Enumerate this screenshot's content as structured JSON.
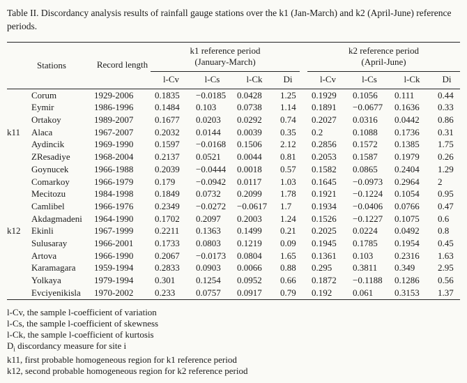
{
  "caption": "Table II. Discordancy analysis results of rainfall gauge stations over the k1 (Jan-March) and k2 (April-June) reference periods.",
  "table": {
    "group_headers": {
      "k1": [
        "k1 reference period",
        "(January-March)"
      ],
      "k2": [
        "k2 reference period",
        "(April-June)"
      ]
    },
    "columns": {
      "stations": "Stations",
      "record_length": "Record length",
      "sub": [
        "l-Cv",
        "l-Cs",
        "l-Ck",
        "Di"
      ]
    },
    "rows": [
      {
        "region": "",
        "station": "Corum",
        "record": "1929-2006",
        "k1": [
          "0.1835",
          "−0.0185",
          "0.0428",
          "1.25"
        ],
        "k2": [
          "0.1929",
          "0.1056",
          "0.111",
          "0.44"
        ]
      },
      {
        "region": "",
        "station": "Eymir",
        "record": "1986-1996",
        "k1": [
          "0.1484",
          "0.103",
          "0.0738",
          "1.14"
        ],
        "k2": [
          "0.1891",
          "−0.0677",
          "0.1636",
          "0.33"
        ]
      },
      {
        "region": "",
        "station": "Ortakoy",
        "record": "1989-2007",
        "k1": [
          "0.1677",
          "0.0203",
          "0.0292",
          "0.74"
        ],
        "k2": [
          "0.2027",
          "0.0316",
          "0.0442",
          "0.86"
        ]
      },
      {
        "region": "k11",
        "station": "Alaca",
        "record": "1967-2007",
        "k1": [
          "0.2032",
          "0.0144",
          "0.0039",
          "0.35"
        ],
        "k2": [
          "0.2",
          "0.1088",
          "0.1736",
          "0.31"
        ]
      },
      {
        "region": "",
        "station": "Aydincik",
        "record": "1969-1990",
        "k1": [
          "0.1597",
          "−0.0168",
          "0.1506",
          "2.12"
        ],
        "k2": [
          "0.2856",
          "0.1572",
          "0.1385",
          "1.75"
        ]
      },
      {
        "region": "",
        "station": "ZResadiye",
        "record": "1968-2004",
        "k1": [
          "0.2137",
          "0.0521",
          "0.0044",
          "0.81"
        ],
        "k2": [
          "0.2053",
          "0.1587",
          "0.1979",
          "0.26"
        ]
      },
      {
        "region": "",
        "station": "Goynucek",
        "record": "1966-1988",
        "k1": [
          "0.2039",
          "−0.0444",
          "0.0018",
          "0.57"
        ],
        "k2": [
          "0.1582",
          "0.0865",
          "0.2404",
          "1.29"
        ]
      },
      {
        "region": "",
        "station": "Comarkoy",
        "record": "1966-1979",
        "k1": [
          "0.179",
          "−0.0942",
          "0.0117",
          "1.03"
        ],
        "k2": [
          "0.1645",
          "−0.0973",
          "0.2964",
          "2"
        ]
      },
      {
        "region": "",
        "station": "Mecitozu",
        "record": "1984-1998",
        "k1": [
          "0.1849",
          "0.0732",
          "0.2099",
          "1.78"
        ],
        "k2": [
          "0.1921",
          "−0.1224",
          "0.1054",
          "0.95"
        ]
      },
      {
        "region": "",
        "station": "Camlibel",
        "record": "1966-1976",
        "k1": [
          "0.2349",
          "−0.0272",
          "−0.0617",
          "1.7"
        ],
        "k2": [
          "0.1934",
          "−0.0406",
          "0.0766",
          "0.47"
        ]
      },
      {
        "region": "",
        "station": "Akdagmadeni",
        "record": "1964-1990",
        "k1": [
          "0.1702",
          "0.2097",
          "0.2003",
          "1.24"
        ],
        "k2": [
          "0.1526",
          "−0.1227",
          "0.1075",
          "0.6"
        ]
      },
      {
        "region": "k12",
        "station": "Ekinli",
        "record": "1967-1999",
        "k1": [
          "0.2211",
          "0.1363",
          "0.1499",
          "0.21"
        ],
        "k2": [
          "0.2025",
          "0.0224",
          "0.0492",
          "0.8"
        ]
      },
      {
        "region": "",
        "station": "Sulusaray",
        "record": "1966-2001",
        "k1": [
          "0.1733",
          "0.0803",
          "0.1219",
          "0.09"
        ],
        "k2": [
          "0.1945",
          "0.1785",
          "0.1954",
          "0.45"
        ]
      },
      {
        "region": "",
        "station": "Artova",
        "record": "1966-1990",
        "k1": [
          "0.2067",
          "−0.0173",
          "0.0804",
          "1.65"
        ],
        "k2": [
          "0.1361",
          "0.103",
          "0.2316",
          "1.63"
        ]
      },
      {
        "region": "",
        "station": "Karamagara",
        "record": "1959-1994",
        "k1": [
          "0.2833",
          "0.0903",
          "0.0066",
          "0.88"
        ],
        "k2": [
          "0.295",
          "0.3811",
          "0.349",
          "2.95"
        ]
      },
      {
        "region": "",
        "station": "Yolkaya",
        "record": "1979-1994",
        "k1": [
          "0.301",
          "0.1254",
          "0.0952",
          "0.66"
        ],
        "k2": [
          "0.1872",
          "−0.1188",
          "0.1286",
          "0.56"
        ]
      },
      {
        "region": "",
        "station": "Evciyenikisla",
        "record": "1970-2002",
        "k1": [
          "0.233",
          "0.0757",
          "0.0917",
          "0.79"
        ],
        "k2": [
          "0.192",
          "0.061",
          "0.3153",
          "1.37"
        ]
      }
    ]
  },
  "footnotes": [
    {
      "term": "l-Cv",
      "rest": ", the sample l-coefficient of variation"
    },
    {
      "term": "l-Cs",
      "rest": ", the sample l-coefficient of skewness"
    },
    {
      "term": "l-Ck",
      "rest": ", the sample l-coefficient of kurtosis"
    },
    {
      "term": "D",
      "sub": "i",
      "rest": " discordancy measure for site i"
    },
    {
      "term": "k11",
      "rest": ", first probable homogeneous region for k1 reference period"
    },
    {
      "term": "k12",
      "rest": ", second probable homogeneous region for k2 reference period"
    }
  ]
}
